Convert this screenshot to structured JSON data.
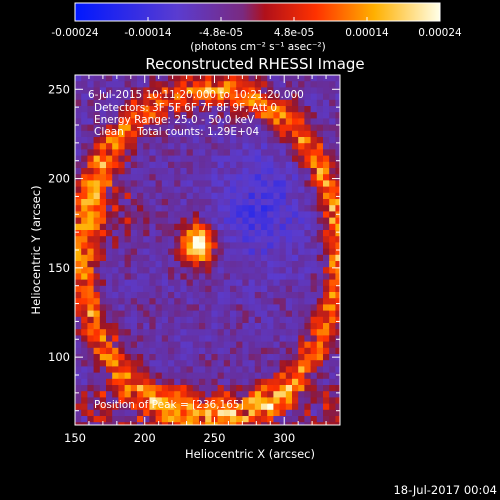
{
  "chart_data": {
    "type": "heatmap",
    "title": "Reconstructed RHESSI Image",
    "xlabel": "Heliocentric X (arcsec)",
    "ylabel": "Heliocentric Y (arcsec)",
    "xlim": [
      150,
      340
    ],
    "ylim": [
      62,
      258
    ],
    "x_ticks": [
      "150",
      "200",
      "250",
      "300"
    ],
    "y_ticks": [
      "100",
      "150",
      "200",
      "250"
    ],
    "colorbar": {
      "ticks": [
        "-0.00024",
        "-0.00014",
        "-4.8e-05",
        "4.8e-05",
        "0.00014",
        "0.00024"
      ],
      "units": "(photons cm⁻² s⁻¹ asec⁻²)",
      "range": [
        -0.00024,
        0.00024
      ],
      "colors": [
        "#0018ff",
        "#7a3cc0",
        "#a0106a",
        "#ff3200",
        "#ffc000",
        "#ffffe8"
      ]
    },
    "annotations": [
      "6-Jul-2015 10:11:20.000 to 10:21:20.000",
      "Detectors: 3F 5F 6F 7F 8F 9F, Att 0",
      "Energy Range: 25.0 - 50.0 keV",
      "Clean    Total counts: 1.29E+04"
    ],
    "peak_label": "Position of Peak = [236,165]",
    "peak": [
      236,
      165
    ]
  },
  "footer": {
    "timestamp": "18-Jul-2017 00:04"
  }
}
